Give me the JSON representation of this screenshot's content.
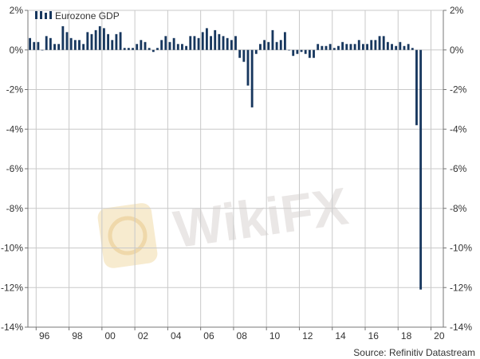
{
  "colors": {
    "bar": "#17375e",
    "grid": "#c9c9c9",
    "axis": "#777777",
    "watermark": "#d9d4d2",
    "watermark_logo": "#f3e2bb"
  },
  "watermark": {
    "text": "WikiFX",
    "icon": "wikifx-logo-icon"
  },
  "source": "Source: Refinitiv Datastream",
  "chart_data": {
    "type": "bar",
    "legend": {
      "label": "Eurozone GDP",
      "position": "top-left"
    },
    "y_axis": {
      "ylim": [
        -14,
        2
      ],
      "ticks": [
        2,
        0,
        -2,
        -4,
        -6,
        -8,
        -10,
        -12,
        -14
      ],
      "tick_labels": [
        "2%",
        "0%",
        "-2%",
        "-4%",
        "-6%",
        "-8%",
        "-10%",
        "-12%",
        "-14%"
      ],
      "mirrored_right": true,
      "grid": "horizontal"
    },
    "x_axis": {
      "xlim": [
        1995.5,
        2020.75
      ],
      "ticks": [
        1996,
        1998,
        2000,
        2002,
        2004,
        2006,
        2008,
        2010,
        2012,
        2014,
        2016,
        2018,
        2020
      ],
      "tick_labels": [
        "96",
        "98",
        "00",
        "02",
        "04",
        "06",
        "08",
        "10",
        "12",
        "14",
        "16",
        "18",
        "20"
      ],
      "grid": "vertical"
    },
    "series": [
      {
        "name": "Eurozone GDP",
        "start": "1995 Q3",
        "frequency": "quarterly",
        "values": [
          0.6,
          0.4,
          0.4,
          0.0,
          0.7,
          0.6,
          0.3,
          0.3,
          1.2,
          0.9,
          0.6,
          0.5,
          0.5,
          0.3,
          0.9,
          0.8,
          1.0,
          1.2,
          1.1,
          0.8,
          0.5,
          0.8,
          0.9,
          0.1,
          0.1,
          0.1,
          0.3,
          0.5,
          0.4,
          0.1,
          -0.1,
          0.1,
          0.5,
          0.7,
          0.4,
          0.6,
          0.3,
          0.3,
          0.2,
          0.7,
          0.7,
          0.6,
          0.9,
          1.1,
          0.7,
          1.0,
          0.8,
          0.7,
          0.6,
          0.5,
          0.7,
          -0.4,
          -0.6,
          -1.8,
          -2.9,
          -0.2,
          0.3,
          0.5,
          0.4,
          1.0,
          0.4,
          0.5,
          0.9,
          0.0,
          -0.3,
          -0.2,
          -0.1,
          -0.2,
          -0.4,
          -0.4,
          0.3,
          0.2,
          0.2,
          0.3,
          0.1,
          0.2,
          0.4,
          0.3,
          0.3,
          0.3,
          0.5,
          0.3,
          0.3,
          0.5,
          0.5,
          0.7,
          0.7,
          0.4,
          0.3,
          0.2,
          0.4,
          0.2,
          0.3,
          0.1,
          -3.8,
          -12.1
        ]
      }
    ]
  }
}
